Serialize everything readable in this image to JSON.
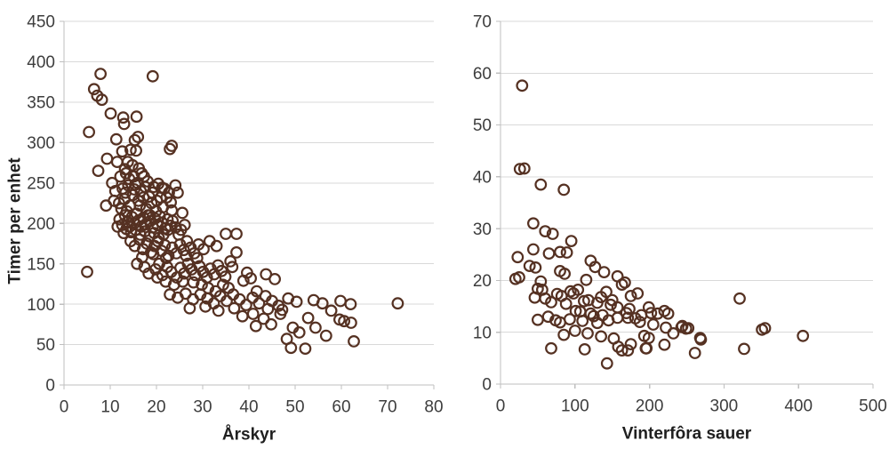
{
  "page": {
    "background": "#ffffff"
  },
  "styles": {
    "grid_color": "#d9d9d9",
    "axis_color": "#bfbfbf",
    "tick_label_color": "#3d3d3d",
    "axis_title_color": "#1f1f1f",
    "marker_color": "#553122"
  },
  "chart_data": [
    {
      "id": "arskyr",
      "type": "scatter",
      "title": "",
      "xlabel": "Årskyr",
      "ylabel": "Timer per enhet",
      "xlim": [
        0,
        80
      ],
      "ylim": [
        0,
        450
      ],
      "x_ticks": [
        0,
        10,
        20,
        30,
        40,
        50,
        60,
        70,
        80
      ],
      "y_ticks": [
        0,
        50,
        100,
        150,
        200,
        250,
        300,
        350,
        400,
        450
      ],
      "grid": "horizontal",
      "legend": "none",
      "marker": {
        "shape": "open-circle",
        "color": "#553122",
        "radius": 5.8,
        "stroke_width": 2.2
      },
      "points": [
        [
          7.9,
          385
        ],
        [
          19.2,
          382
        ],
        [
          6.5,
          366
        ],
        [
          7.2,
          358
        ],
        [
          8.2,
          353
        ],
        [
          10.1,
          336
        ],
        [
          12.8,
          331
        ],
        [
          15.7,
          332
        ],
        [
          13,
          323
        ],
        [
          5.4,
          313
        ],
        [
          16,
          307
        ],
        [
          11.3,
          304
        ],
        [
          15.3,
          303
        ],
        [
          23.3,
          296
        ],
        [
          12.6,
          289
        ],
        [
          15.6,
          290
        ],
        [
          14.4,
          291
        ],
        [
          22.9,
          292
        ],
        [
          9.3,
          280
        ],
        [
          13.2,
          267
        ],
        [
          7.4,
          265
        ],
        [
          11.5,
          276
        ],
        [
          13.8,
          276
        ],
        [
          14.8,
          272
        ],
        [
          16.2,
          268
        ],
        [
          12.2,
          258
        ],
        [
          13.4,
          262
        ],
        [
          15.1,
          258
        ],
        [
          16.8,
          262
        ],
        [
          14.1,
          255
        ],
        [
          15.9,
          250
        ],
        [
          10.4,
          250
        ],
        [
          17.3,
          258
        ],
        [
          18.1,
          252
        ],
        [
          13.9,
          247
        ],
        [
          20.4,
          249
        ],
        [
          21.2,
          244
        ],
        [
          21.7,
          243
        ],
        [
          22.7,
          238
        ],
        [
          23.1,
          226
        ],
        [
          23.3,
          216
        ],
        [
          25.6,
          213
        ],
        [
          24.1,
          247
        ],
        [
          24.6,
          238
        ],
        [
          9.1,
          222
        ],
        [
          10.8,
          228
        ],
        [
          11.9,
          225
        ],
        [
          12.7,
          243
        ],
        [
          13.1,
          230
        ],
        [
          13.6,
          215
        ],
        [
          14.3,
          222
        ],
        [
          14.9,
          235
        ],
        [
          15.4,
          248
        ],
        [
          16.1,
          228
        ],
        [
          16.6,
          240
        ],
        [
          17.2,
          232
        ],
        [
          17.8,
          218
        ],
        [
          18.4,
          233
        ],
        [
          18.9,
          225
        ],
        [
          19.4,
          245
        ],
        [
          19.9,
          215
        ],
        [
          20.9,
          232
        ],
        [
          12.4,
          218
        ],
        [
          15.2,
          242
        ],
        [
          16.4,
          222
        ],
        [
          17.6,
          245
        ],
        [
          18.6,
          210
        ],
        [
          19.1,
          238
        ],
        [
          20.1,
          228
        ],
        [
          21.4,
          220
        ],
        [
          22.2,
          232
        ],
        [
          11.1,
          240
        ],
        [
          13.3,
          238
        ],
        [
          12,
          205
        ],
        [
          12.6,
          198
        ],
        [
          13.2,
          210
        ],
        [
          13.7,
          202
        ],
        [
          14.2,
          196
        ],
        [
          14.7,
          208
        ],
        [
          15.2,
          200
        ],
        [
          15.7,
          212
        ],
        [
          16.2,
          204
        ],
        [
          16.7,
          196
        ],
        [
          17.2,
          207
        ],
        [
          17.7,
          199
        ],
        [
          18.2,
          210
        ],
        [
          18.7,
          203
        ],
        [
          19.2,
          195
        ],
        [
          19.7,
          206
        ],
        [
          20.2,
          198
        ],
        [
          20.7,
          209
        ],
        [
          21.2,
          201
        ],
        [
          21.9,
          194
        ],
        [
          22.4,
          205
        ],
        [
          23,
          197
        ],
        [
          13.5,
          193
        ],
        [
          14.5,
          189
        ],
        [
          15.5,
          192
        ],
        [
          16.5,
          186
        ],
        [
          17.5,
          190
        ],
        [
          18.5,
          184
        ],
        [
          19.5,
          188
        ],
        [
          20.5,
          182
        ],
        [
          21.5,
          186
        ],
        [
          22.5,
          192
        ],
        [
          23.5,
          203
        ],
        [
          24.2,
          195
        ],
        [
          24.8,
          186
        ],
        [
          25.3,
          192
        ],
        [
          26.1,
          198
        ],
        [
          11.6,
          196
        ],
        [
          12.9,
          188
        ],
        [
          14.4,
          178
        ],
        [
          15.3,
          172
        ],
        [
          16.3,
          180
        ],
        [
          17.1,
          168
        ],
        [
          17.9,
          175
        ],
        [
          18.8,
          164
        ],
        [
          19.6,
          172
        ],
        [
          20.3,
          178
        ],
        [
          21.1,
          166
        ],
        [
          21.8,
          173
        ],
        [
          22.6,
          160
        ],
        [
          23.4,
          170
        ],
        [
          24.3,
          163
        ],
        [
          25.1,
          174
        ],
        [
          25.9,
          167
        ],
        [
          26.6,
          178
        ],
        [
          27.4,
          170
        ],
        [
          28.2,
          163
        ],
        [
          29.1,
          174
        ],
        [
          30.2,
          168
        ],
        [
          16.9,
          158
        ],
        [
          19.3,
          162
        ],
        [
          22.1,
          157
        ],
        [
          26.4,
          160
        ],
        [
          28.8,
          157
        ],
        [
          35,
          187
        ],
        [
          37.3,
          187
        ],
        [
          37.3,
          164
        ],
        [
          31.5,
          178
        ],
        [
          33,
          172
        ],
        [
          15.8,
          150
        ],
        [
          17.4,
          146
        ],
        [
          18.3,
          138
        ],
        [
          19.8,
          143
        ],
        [
          20.6,
          150
        ],
        [
          21.3,
          136
        ],
        [
          22.3,
          146
        ],
        [
          23.2,
          140
        ],
        [
          24.4,
          133
        ],
        [
          25.2,
          145
        ],
        [
          26,
          138
        ],
        [
          26.8,
          150
        ],
        [
          27.6,
          143
        ],
        [
          28.4,
          136
        ],
        [
          29.3,
          147
        ],
        [
          30.1,
          140
        ],
        [
          30.9,
          133
        ],
        [
          31.7,
          144
        ],
        [
          32.5,
          137
        ],
        [
          33.3,
          148
        ],
        [
          34.1,
          141
        ],
        [
          34.9,
          134
        ],
        [
          36,
          153
        ],
        [
          36.4,
          146
        ],
        [
          38.8,
          129
        ],
        [
          39.6,
          139
        ],
        [
          40.4,
          132
        ],
        [
          41.7,
          116
        ],
        [
          43.7,
          137
        ],
        [
          45.6,
          131
        ],
        [
          28,
          127
        ],
        [
          29.8,
          124
        ],
        [
          31.2,
          120
        ],
        [
          32.8,
          116
        ],
        [
          34.4,
          124
        ],
        [
          35.6,
          120
        ],
        [
          25.7,
          128
        ],
        [
          23.8,
          124
        ],
        [
          22,
          128
        ],
        [
          20.2,
          133
        ],
        [
          5,
          140
        ],
        [
          22.9,
          112
        ],
        [
          24.6,
          108
        ],
        [
          26.3,
          113
        ],
        [
          27.9,
          106
        ],
        [
          29.5,
          112
        ],
        [
          31,
          107
        ],
        [
          32.4,
          101
        ],
        [
          33.8,
          110
        ],
        [
          35.2,
          104
        ],
        [
          36.6,
          112
        ],
        [
          38,
          106
        ],
        [
          39.4,
          99
        ],
        [
          40.8,
          108
        ],
        [
          42.2,
          101
        ],
        [
          43.6,
          110
        ],
        [
          45,
          104
        ],
        [
          46.4,
          98
        ],
        [
          48.5,
          107
        ],
        [
          50.3,
          103
        ],
        [
          54,
          105
        ],
        [
          55.9,
          101
        ],
        [
          59.8,
          104
        ],
        [
          62,
          100
        ],
        [
          72.2,
          101
        ],
        [
          47.2,
          93
        ],
        [
          36.8,
          95
        ],
        [
          33.4,
          92
        ],
        [
          30.6,
          97
        ],
        [
          27.2,
          95
        ],
        [
          40.9,
          88
        ],
        [
          43.2,
          82
        ],
        [
          44.8,
          75
        ],
        [
          46.8,
          88
        ],
        [
          48.2,
          57
        ],
        [
          49.1,
          46
        ],
        [
          49.5,
          71
        ],
        [
          50.9,
          65
        ],
        [
          52.8,
          83
        ],
        [
          54.4,
          71
        ],
        [
          56.7,
          61
        ],
        [
          52.2,
          45
        ],
        [
          59.6,
          81
        ],
        [
          60.6,
          79
        ],
        [
          62.1,
          77
        ],
        [
          62.7,
          54
        ],
        [
          57.8,
          92
        ],
        [
          44.1,
          94
        ],
        [
          41.5,
          73
        ],
        [
          38.6,
          85
        ]
      ]
    },
    {
      "id": "vinterfora-sauer",
      "type": "scatter",
      "title": "",
      "xlabel": "Vinterfôra sauer",
      "ylabel": "",
      "xlim": [
        0,
        500
      ],
      "ylim": [
        0,
        70
      ],
      "x_ticks": [
        0,
        100,
        200,
        300,
        400,
        500
      ],
      "y_ticks": [
        0,
        10,
        20,
        30,
        40,
        50,
        60,
        70
      ],
      "grid": "horizontal",
      "legend": "none",
      "marker": {
        "shape": "open-circle",
        "color": "#553122",
        "radius": 5.8,
        "stroke_width": 2.2
      },
      "points": [
        [
          29,
          57.6
        ],
        [
          26,
          41.5
        ],
        [
          32,
          41.6
        ],
        [
          54,
          38.5
        ],
        [
          85,
          37.5
        ],
        [
          60,
          29.5
        ],
        [
          70,
          29
        ],
        [
          95,
          27.6
        ],
        [
          44,
          31
        ],
        [
          44,
          26
        ],
        [
          65,
          25.2
        ],
        [
          80,
          25.5
        ],
        [
          89,
          25.4
        ],
        [
          121,
          23.8
        ],
        [
          127,
          22.6
        ],
        [
          39,
          22.8
        ],
        [
          47,
          22.5
        ],
        [
          25,
          20.6
        ],
        [
          139,
          21.6
        ],
        [
          157,
          20.8
        ],
        [
          115,
          20.1
        ],
        [
          80,
          21.8
        ],
        [
          86,
          21.3
        ],
        [
          23,
          24.5
        ],
        [
          20,
          20.3
        ],
        [
          54,
          19.8
        ],
        [
          50,
          18.4
        ],
        [
          56,
          18.2
        ],
        [
          46,
          16.7
        ],
        [
          76,
          17.4
        ],
        [
          82,
          17
        ],
        [
          94,
          17.9
        ],
        [
          98,
          17.5
        ],
        [
          104,
          18.2
        ],
        [
          118,
          16.2
        ],
        [
          130,
          15.7
        ],
        [
          148,
          15.3
        ],
        [
          157,
          14.8
        ],
        [
          167,
          19.6
        ],
        [
          184,
          17.5
        ],
        [
          173,
          14.5
        ],
        [
          163,
          19.2
        ],
        [
          175,
          17
        ],
        [
          112,
          16
        ],
        [
          88,
          15.5
        ],
        [
          68,
          15.8
        ],
        [
          60,
          16.5
        ],
        [
          135,
          16.8
        ],
        [
          142,
          17.8
        ],
        [
          150,
          16.2
        ],
        [
          321,
          16.5
        ],
        [
          101,
          14.1
        ],
        [
          107,
          14
        ],
        [
          121,
          13.6
        ],
        [
          125,
          13.1
        ],
        [
          137,
          13.3
        ],
        [
          157,
          12.8
        ],
        [
          171,
          12.8
        ],
        [
          189,
          13.3
        ],
        [
          199,
          14.8
        ],
        [
          169,
          13.7
        ],
        [
          181,
          12.7
        ],
        [
          187,
          12
        ],
        [
          202,
          13.7
        ],
        [
          211,
          13.6
        ],
        [
          220,
          14.1
        ],
        [
          225,
          13.6
        ],
        [
          205,
          11.5
        ],
        [
          50,
          12.4
        ],
        [
          74,
          12.3
        ],
        [
          80,
          11.9
        ],
        [
          64,
          13
        ],
        [
          93,
          12.5
        ],
        [
          110,
          12.2
        ],
        [
          130,
          11.8
        ],
        [
          145,
          12.3
        ],
        [
          355,
          10.8
        ],
        [
          193,
          9.3
        ],
        [
          199,
          8.9
        ],
        [
          175,
          7.7
        ],
        [
          243,
          11
        ],
        [
          252,
          10.8
        ],
        [
          269,
          8.6
        ],
        [
          351,
          10.5
        ],
        [
          406,
          9.3
        ],
        [
          117,
          9.8
        ],
        [
          100,
          10.3
        ],
        [
          85,
          9.5
        ],
        [
          135,
          9.2
        ],
        [
          152,
          8.8
        ],
        [
          222,
          10.9
        ],
        [
          232,
          9.8
        ],
        [
          244,
          11.2
        ],
        [
          249,
          10.7
        ],
        [
          268,
          8.9
        ],
        [
          68,
          6.9
        ],
        [
          113,
          6.7
        ],
        [
          143,
          4
        ],
        [
          163,
          6.5
        ],
        [
          171,
          6.5
        ],
        [
          196,
          6.9
        ],
        [
          220,
          7.6
        ],
        [
          261,
          6
        ],
        [
          327,
          6.8
        ],
        [
          195,
          6.9
        ],
        [
          158,
          7.2
        ]
      ]
    }
  ]
}
